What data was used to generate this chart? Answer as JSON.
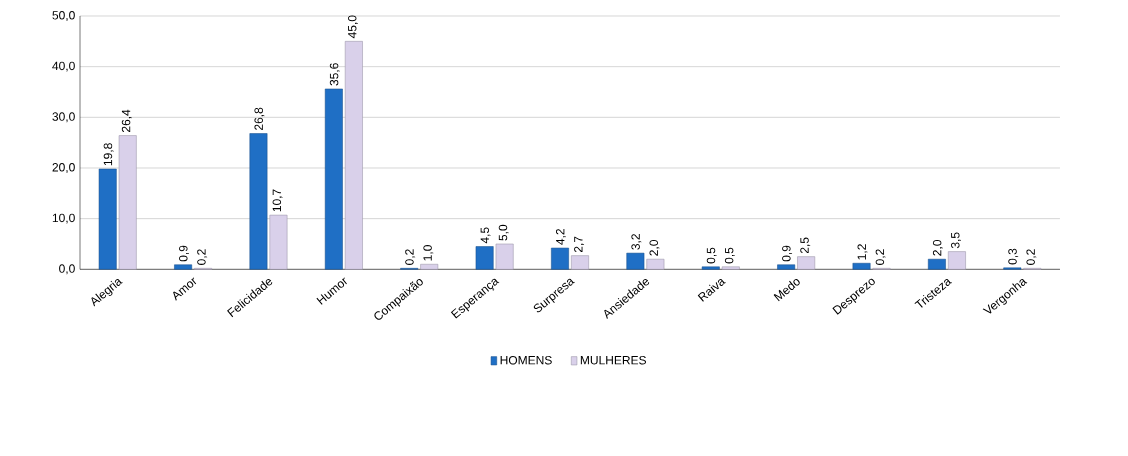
{
  "chart_data": {
    "type": "bar",
    "categories": [
      "Alegria",
      "Amor",
      "Felicidade",
      "Humor",
      "Compaixão",
      "Esperança",
      "Surpresa",
      "Ansiedade",
      "Raiva",
      "Medo",
      "Desprezo",
      "Tristeza",
      "Vergonha"
    ],
    "series": [
      {
        "name": "HOMENS",
        "color": "#1f6fc5",
        "values": [
          19.8,
          0.9,
          26.8,
          35.6,
          0.2,
          4.5,
          4.2,
          3.2,
          0.5,
          0.9,
          1.2,
          2.0,
          0.3
        ],
        "value_labels": [
          "19,8",
          "0,9",
          "26,8",
          "35,6",
          "0,2",
          "4,5",
          "4,2",
          "3,2",
          "0,5",
          "0,9",
          "1,2",
          "2,0",
          "0,3"
        ]
      },
      {
        "name": "MULHERES",
        "color": "#d9d0ea",
        "values": [
          26.4,
          0.2,
          10.7,
          45.0,
          1.0,
          5.0,
          2.7,
          2.0,
          0.5,
          2.5,
          0.2,
          3.5,
          0.2
        ],
        "value_labels": [
          "26,4",
          "0,2",
          "10,7",
          "45,0",
          "1,0",
          "5,0",
          "2,7",
          "2,0",
          "0,5",
          "2,5",
          "0,2",
          "3,5",
          "0,2"
        ]
      }
    ],
    "ylim": [
      0,
      50
    ],
    "yticks": [
      {
        "value": 0,
        "label": "0,0"
      },
      {
        "value": 10,
        "label": "10,0"
      },
      {
        "value": 20,
        "label": "20,0"
      },
      {
        "value": 30,
        "label": "30,0"
      },
      {
        "value": 40,
        "label": "40,0"
      },
      {
        "value": 50,
        "label": "50,0"
      }
    ],
    "grid": "y",
    "legend": "bottom"
  }
}
